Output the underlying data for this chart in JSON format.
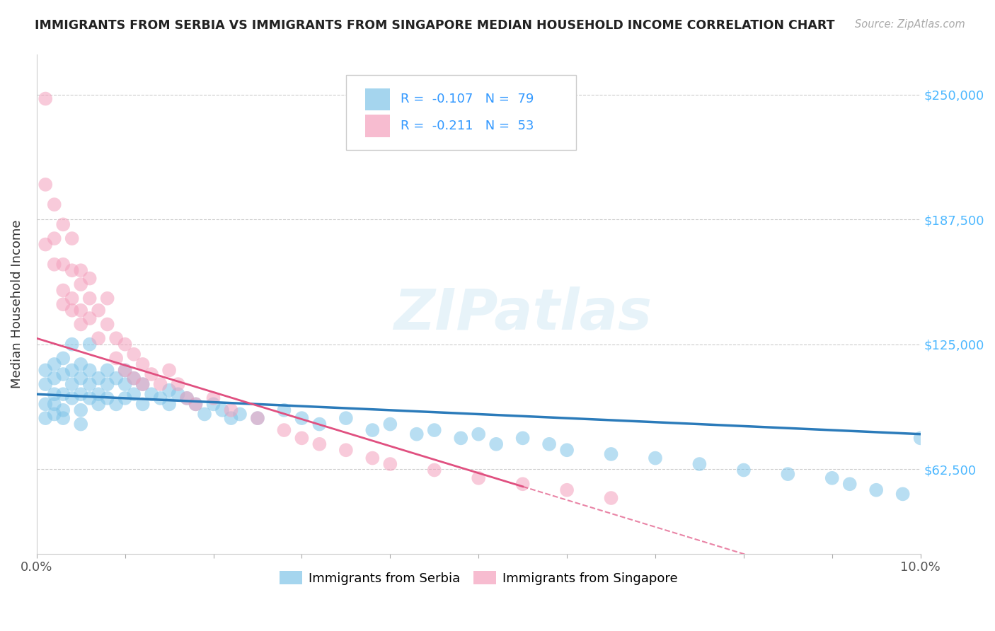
{
  "title": "IMMIGRANTS FROM SERBIA VS IMMIGRANTS FROM SINGAPORE MEDIAN HOUSEHOLD INCOME CORRELATION CHART",
  "source_text": "Source: ZipAtlas.com",
  "ylabel": "Median Household Income",
  "y_ticks": [
    62500,
    125000,
    187500,
    250000
  ],
  "y_tick_labels": [
    "$62,500",
    "$125,000",
    "$187,500",
    "$250,000"
  ],
  "xlim": [
    0.0,
    0.1
  ],
  "ylim": [
    20000,
    270000
  ],
  "watermark": "ZIPatlas",
  "legend": {
    "serbia_R": "-0.107",
    "serbia_N": "79",
    "singapore_R": "-0.211",
    "singapore_N": "53"
  },
  "serbia_color": "#7fc4e8",
  "singapore_color": "#f4a0bc",
  "serbia_line_color": "#2b7bba",
  "singapore_line_color": "#e05080",
  "serbia_scatter_x": [
    0.001,
    0.001,
    0.001,
    0.001,
    0.002,
    0.002,
    0.002,
    0.002,
    0.002,
    0.003,
    0.003,
    0.003,
    0.003,
    0.003,
    0.004,
    0.004,
    0.004,
    0.004,
    0.005,
    0.005,
    0.005,
    0.005,
    0.005,
    0.006,
    0.006,
    0.006,
    0.006,
    0.007,
    0.007,
    0.007,
    0.008,
    0.008,
    0.008,
    0.009,
    0.009,
    0.01,
    0.01,
    0.01,
    0.011,
    0.011,
    0.012,
    0.012,
    0.013,
    0.014,
    0.015,
    0.015,
    0.016,
    0.017,
    0.018,
    0.019,
    0.02,
    0.021,
    0.022,
    0.023,
    0.025,
    0.028,
    0.03,
    0.032,
    0.035,
    0.038,
    0.04,
    0.043,
    0.045,
    0.048,
    0.05,
    0.052,
    0.055,
    0.058,
    0.06,
    0.065,
    0.07,
    0.075,
    0.08,
    0.085,
    0.09,
    0.092,
    0.095,
    0.098,
    0.1
  ],
  "serbia_scatter_y": [
    95000,
    88000,
    105000,
    112000,
    100000,
    95000,
    90000,
    108000,
    115000,
    92000,
    100000,
    110000,
    118000,
    88000,
    105000,
    112000,
    98000,
    125000,
    92000,
    100000,
    108000,
    115000,
    85000,
    105000,
    112000,
    98000,
    125000,
    100000,
    108000,
    95000,
    112000,
    105000,
    98000,
    108000,
    95000,
    112000,
    105000,
    98000,
    108000,
    100000,
    105000,
    95000,
    100000,
    98000,
    102000,
    95000,
    100000,
    98000,
    95000,
    90000,
    95000,
    92000,
    88000,
    90000,
    88000,
    92000,
    88000,
    85000,
    88000,
    82000,
    85000,
    80000,
    82000,
    78000,
    80000,
    75000,
    78000,
    75000,
    72000,
    70000,
    68000,
    65000,
    62000,
    60000,
    58000,
    55000,
    52000,
    50000,
    78000
  ],
  "singapore_scatter_x": [
    0.001,
    0.001,
    0.002,
    0.002,
    0.003,
    0.003,
    0.003,
    0.004,
    0.004,
    0.004,
    0.005,
    0.005,
    0.005,
    0.006,
    0.006,
    0.006,
    0.007,
    0.007,
    0.008,
    0.008,
    0.009,
    0.009,
    0.01,
    0.01,
    0.011,
    0.011,
    0.012,
    0.012,
    0.013,
    0.014,
    0.015,
    0.016,
    0.017,
    0.018,
    0.02,
    0.022,
    0.025,
    0.028,
    0.03,
    0.032,
    0.035,
    0.038,
    0.04,
    0.045,
    0.05,
    0.055,
    0.06,
    0.065,
    0.001,
    0.002,
    0.003,
    0.004,
    0.005
  ],
  "singapore_scatter_y": [
    248000,
    205000,
    195000,
    178000,
    165000,
    185000,
    145000,
    162000,
    148000,
    178000,
    155000,
    142000,
    162000,
    148000,
    138000,
    158000,
    142000,
    128000,
    135000,
    148000,
    128000,
    118000,
    125000,
    112000,
    120000,
    108000,
    115000,
    105000,
    110000,
    105000,
    112000,
    105000,
    98000,
    95000,
    98000,
    92000,
    88000,
    82000,
    78000,
    75000,
    72000,
    68000,
    65000,
    62000,
    58000,
    55000,
    52000,
    48000,
    175000,
    165000,
    152000,
    142000,
    135000
  ]
}
